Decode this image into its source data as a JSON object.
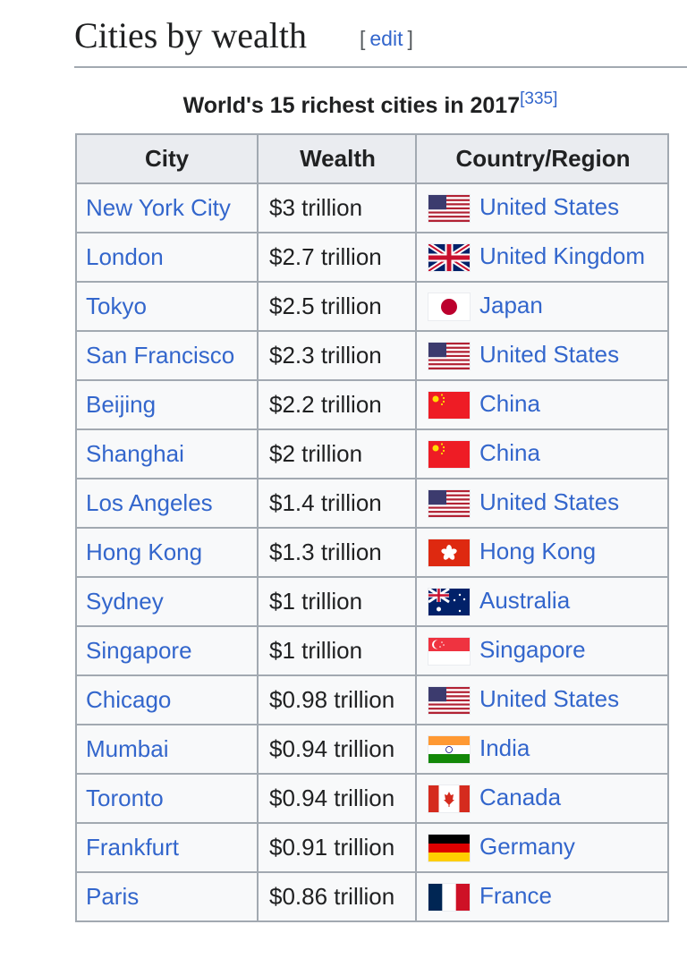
{
  "heading": {
    "title": "Cities by wealth",
    "edit_label": "edit"
  },
  "table": {
    "caption": "World's 15 richest cities in 2017",
    "caption_ref": "[335]",
    "headers": [
      "City",
      "Wealth",
      "Country/Region"
    ],
    "rows": [
      {
        "city": "New York City",
        "wealth": "$3 trillion",
        "country": "United States",
        "flag": "us-flag"
      },
      {
        "city": "London",
        "wealth": "$2.7 trillion",
        "country": "United Kingdom",
        "flag": "gb-flag"
      },
      {
        "city": "Tokyo",
        "wealth": "$2.5 trillion",
        "country": "Japan",
        "flag": "jp-flag"
      },
      {
        "city": "San Francisco",
        "wealth": "$2.3 trillion",
        "country": "United States",
        "flag": "us-flag"
      },
      {
        "city": "Beijing",
        "wealth": "$2.2 trillion",
        "country": "China",
        "flag": "cn-flag"
      },
      {
        "city": "Shanghai",
        "wealth": "$2 trillion",
        "country": "China",
        "flag": "cn-flag"
      },
      {
        "city": "Los Angeles",
        "wealth": "$1.4 trillion",
        "country": "United States",
        "flag": "us-flag"
      },
      {
        "city": "Hong Kong",
        "wealth": "$1.3 trillion",
        "country": "Hong Kong",
        "flag": "hk-flag"
      },
      {
        "city": "Sydney",
        "wealth": "$1 trillion",
        "country": "Australia",
        "flag": "au-flag"
      },
      {
        "city": "Singapore",
        "wealth": "$1 trillion",
        "country": "Singapore",
        "flag": "sg-flag"
      },
      {
        "city": "Chicago",
        "wealth": "$0.98 trillion",
        "country": "United States",
        "flag": "us-flag"
      },
      {
        "city": "Mumbai",
        "wealth": "$0.94 trillion",
        "country": "India",
        "flag": "in-flag"
      },
      {
        "city": "Toronto",
        "wealth": "$0.94 trillion",
        "country": "Canada",
        "flag": "ca-flag"
      },
      {
        "city": "Frankfurt",
        "wealth": "$0.91 trillion",
        "country": "Germany",
        "flag": "de-flag"
      },
      {
        "city": "Paris",
        "wealth": "$0.86 trillion",
        "country": "France",
        "flag": "fr-flag"
      }
    ]
  },
  "colors": {
    "link": "#3366cc",
    "header_bg": "#eaecf0",
    "cell_bg": "#f8f9fa",
    "border": "#a2a9b1"
  }
}
